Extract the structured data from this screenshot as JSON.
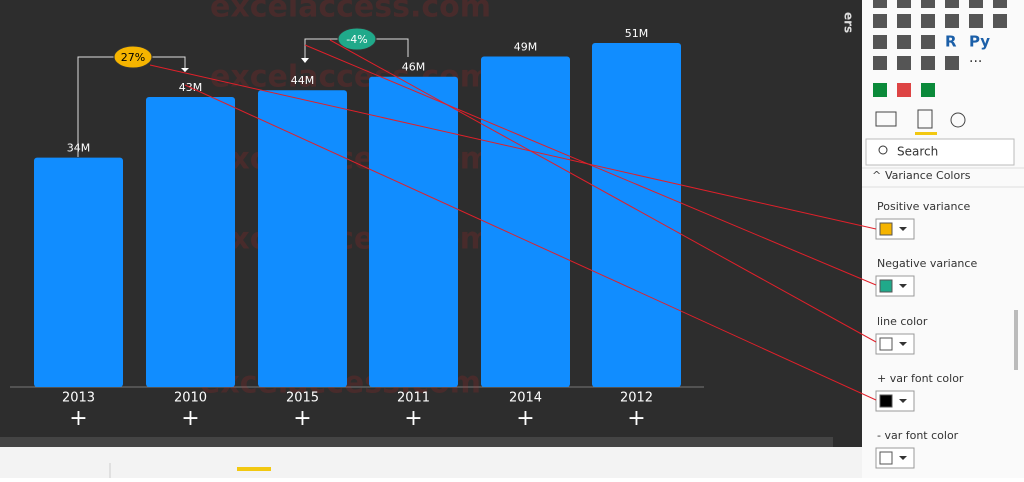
{
  "chart_data": {
    "type": "bar",
    "categories": [
      "2013",
      "2010",
      "2015",
      "2011",
      "2014",
      "2012"
    ],
    "values": [
      34,
      43,
      44,
      46,
      49,
      51
    ],
    "value_labels": [
      "34M",
      "43M",
      "44M",
      "46M",
      "49M",
      "51M"
    ],
    "color": "#118dff",
    "annotations": [
      {
        "text": "27%",
        "color": "#f5b400"
      },
      {
        "text": "-4%",
        "color": "#20a98a"
      }
    ],
    "watermark": "excelaccess.com"
  },
  "format_pane": {
    "side_label": "ers",
    "icons": [
      "R",
      "Py",
      "···"
    ],
    "search_placeholder": "Search",
    "section": "Variance Colors",
    "settings": [
      {
        "label": "Positive variance",
        "color": "#f5b400"
      },
      {
        "label": "Negative variance",
        "color": "#20a98a"
      },
      {
        "label": "line color",
        "color": "#ffffff"
      },
      {
        "label": "+ var font color",
        "color": "#000000"
      },
      {
        "label": "- var font color",
        "color": "#ffffff"
      }
    ]
  }
}
